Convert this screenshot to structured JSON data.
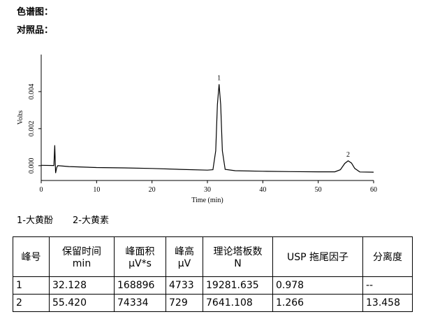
{
  "heading": "色谱图：",
  "subheading": "对照品：",
  "chart_data": {
    "type": "line",
    "xlabel": "Time (min)",
    "ylabel": "Volts",
    "x": [
      0,
      2.3,
      2.45,
      2.6,
      2.8,
      3,
      5,
      10,
      15,
      20,
      25,
      30,
      31,
      31.5,
      31.8,
      32.1,
      32.4,
      32.7,
      33.2,
      35,
      40,
      45,
      50,
      53,
      54,
      54.8,
      55.4,
      56,
      56.6,
      57.5,
      60
    ],
    "values": [
      2e-05,
      1e-05,
      0.0011,
      -0.0004,
      -0.0001,
      0.0,
      -5e-05,
      -0.0001,
      -0.00012,
      -0.00015,
      -0.0002,
      -0.00024,
      -0.00022,
      0.0008,
      0.0033,
      0.0044,
      0.0033,
      0.0008,
      -0.0002,
      -0.00027,
      -0.0003,
      -0.00032,
      -0.00033,
      -0.00033,
      -0.00022,
      0.00012,
      0.00026,
      0.00014,
      -0.00015,
      -0.00034,
      -0.00035
    ],
    "color": "#000000",
    "xlim": [
      0,
      60
    ],
    "xticks": [
      0,
      10,
      20,
      30,
      40,
      50,
      60
    ],
    "ylim": [
      -0.0008,
      0.006
    ],
    "yticks": [
      {
        "value": 0,
        "label": "0.000"
      },
      {
        "value": 0.002,
        "label": "0.002"
      },
      {
        "value": 0.004,
        "label": "0.004"
      }
    ],
    "annotations": [
      {
        "text": "1",
        "x": 32.1,
        "y": 0.0044
      },
      {
        "text": "2",
        "x": 55.4,
        "y": 0.00026
      }
    ]
  },
  "legend": [
    "1-大黄酚",
    "2-大黄素"
  ],
  "table": {
    "header": [
      [
        "峰号"
      ],
      [
        "保留时间",
        "min"
      ],
      [
        "峰面积",
        "μV*s"
      ],
      [
        "峰高",
        "μV"
      ],
      [
        "理论塔板数",
        "N"
      ],
      [
        "USP 拖尾因子"
      ],
      [
        "分离度"
      ]
    ],
    "rows": [
      [
        "1",
        "32.128",
        "168896",
        "4733",
        "19281.635",
        "0.978",
        "--"
      ],
      [
        "2",
        "55.420",
        "74334",
        "729",
        "7641.108",
        "1.266",
        "13.458"
      ]
    ]
  }
}
